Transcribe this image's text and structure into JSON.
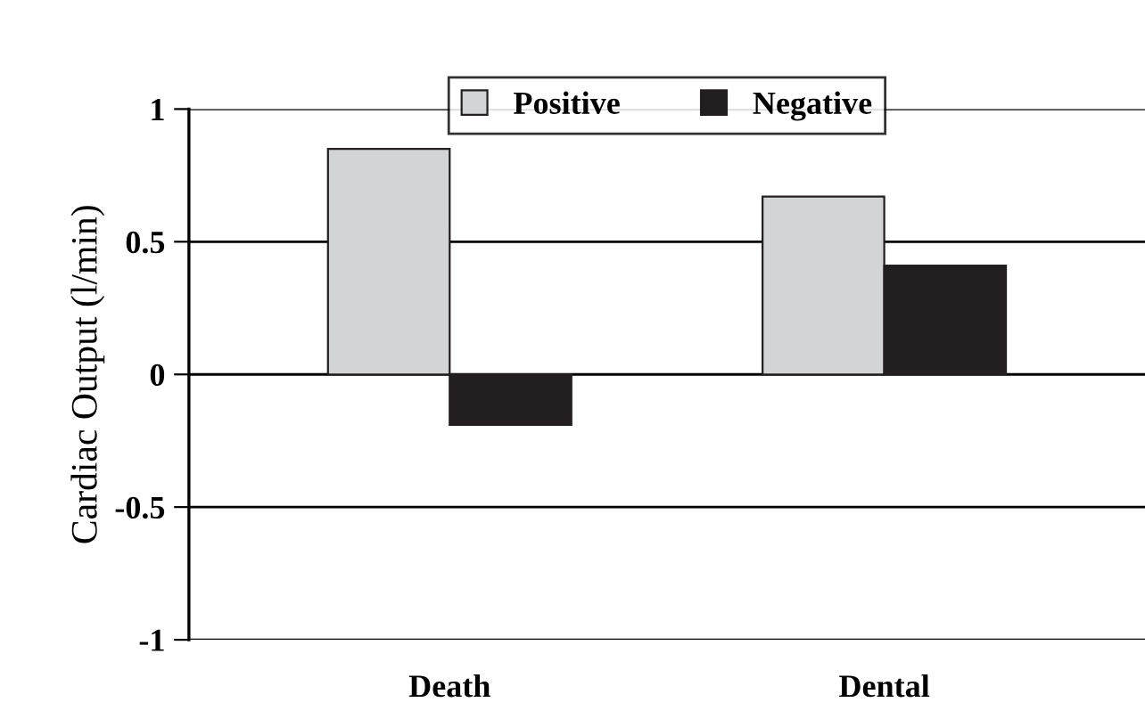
{
  "chart_data": {
    "type": "bar",
    "ylabel": "Cardiac Output (l/min)",
    "categories": [
      "Death",
      "Dental"
    ],
    "series": [
      {
        "name": "Positive",
        "color": "#d3d4d6",
        "values": [
          0.85,
          0.67
        ]
      },
      {
        "name": "Negative",
        "color": "#231f20",
        "values": [
          -0.19,
          0.41
        ]
      }
    ],
    "ylim": [
      -1,
      1
    ],
    "yticks": [
      {
        "value": -1,
        "label": "-1"
      },
      {
        "value": -0.5,
        "label": "-0.5"
      },
      0,
      0.5,
      1
    ],
    "grid": "y",
    "legend": "top"
  }
}
